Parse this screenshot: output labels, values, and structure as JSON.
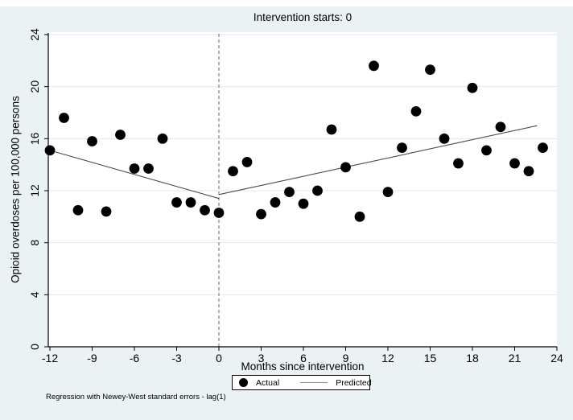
{
  "chart_data": {
    "type": "scatter",
    "title": "Intervention starts: 0",
    "xlabel": "Months since intervention",
    "ylabel": "Opioid overdoses per 100,000 persons",
    "caption": "Regression with Newey-West standard errors - lag(1)",
    "xlim": [
      -12,
      24
    ],
    "ylim": [
      0,
      24
    ],
    "xticks": [
      -12,
      -9,
      -6,
      -3,
      0,
      3,
      6,
      9,
      12,
      15,
      18,
      21,
      24
    ],
    "yticks": [
      0,
      4,
      8,
      12,
      16,
      20,
      24
    ],
    "grid": true,
    "intervention_x": 0,
    "series": [
      {
        "name": "Actual",
        "kind": "scatter",
        "color": "#000000",
        "x": [
          -12,
          -11,
          -10,
          -9,
          -8,
          -7,
          -6,
          -5,
          -4,
          -3,
          -2,
          -1,
          0,
          1,
          2,
          3,
          4,
          5,
          6,
          7,
          8,
          9,
          10,
          11,
          12,
          13,
          14,
          15,
          16,
          17,
          18,
          19,
          20,
          21,
          22,
          23
        ],
        "y": [
          15.1,
          17.6,
          10.5,
          15.8,
          10.4,
          16.3,
          13.7,
          13.7,
          16.0,
          11.1,
          11.1,
          10.5,
          10.3,
          13.5,
          14.2,
          10.2,
          11.1,
          11.9,
          11.0,
          12.0,
          16.7,
          13.8,
          10.0,
          21.6,
          11.9,
          15.3,
          18.1,
          21.3,
          16.0,
          14.1,
          19.9,
          15.1,
          16.9,
          14.1,
          13.5,
          15.3
        ]
      },
      {
        "name": "Predicted",
        "kind": "line",
        "color": "#4a4a4a",
        "segments": [
          [
            [
              -12,
              15.1
            ],
            [
              0,
              11.4
            ]
          ],
          [
            [
              0,
              11.7
            ],
            [
              22.6,
              17.0
            ]
          ]
        ]
      }
    ],
    "legend": {
      "position": "bottom-center",
      "entries": [
        {
          "label": "Actual",
          "marker": "filled-circle"
        },
        {
          "label": "Predicted",
          "marker": "line"
        }
      ]
    },
    "colors": {
      "background": "#eaf2f3",
      "plot_background": "#ffffff",
      "gridline": "#dde9ec",
      "axis": "#000000",
      "intervention_line": "#808080",
      "point": "#000000",
      "fit_line": "#4a4a4a",
      "legend_line_sample": "#8c8c8c"
    }
  }
}
